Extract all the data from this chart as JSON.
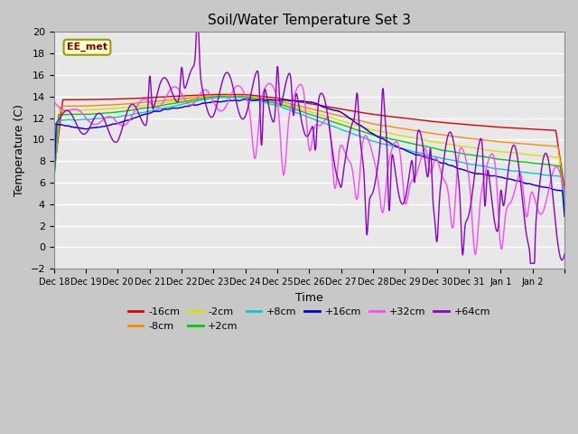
{
  "title": "Soil/Water Temperature Set 3",
  "xlabel": "Time",
  "ylabel": "Temperature (C)",
  "ylim": [
    -2,
    20
  ],
  "yticks": [
    -2,
    0,
    2,
    4,
    6,
    8,
    10,
    12,
    14,
    16,
    18,
    20
  ],
  "fig_facecolor": "#c8c8c8",
  "axes_facecolor": "#e8e8e8",
  "grid_color": "#ffffff",
  "annotation_text": "EE_met",
  "annotation_bg": "#ffffcc",
  "annotation_border": "#999900",
  "legend_order": [
    "-16cm",
    "-8cm",
    "-2cm",
    "+2cm",
    "+8cm",
    "+16cm",
    "+32cm",
    "+64cm"
  ],
  "colors": {
    "-16cm": "#dd0000",
    "-8cm": "#ff8800",
    "-2cm": "#dddd00",
    "+2cm": "#00cc00",
    "+8cm": "#00cccc",
    "+16cm": "#0000cc",
    "+32cm": "#ff44ff",
    "+64cm": "#8800cc"
  },
  "xtick_labels": [
    "Dec 18",
    "Dec 19",
    "Dec 20",
    "Dec 21",
    "Dec 22",
    "Dec 23",
    "Dec 24",
    "Dec 25",
    "Dec 26",
    "Dec 27",
    "Dec 28",
    "Dec 29",
    "Dec 30",
    "Dec 31",
    "Jan 1",
    "Jan 2"
  ],
  "n_days": 16
}
